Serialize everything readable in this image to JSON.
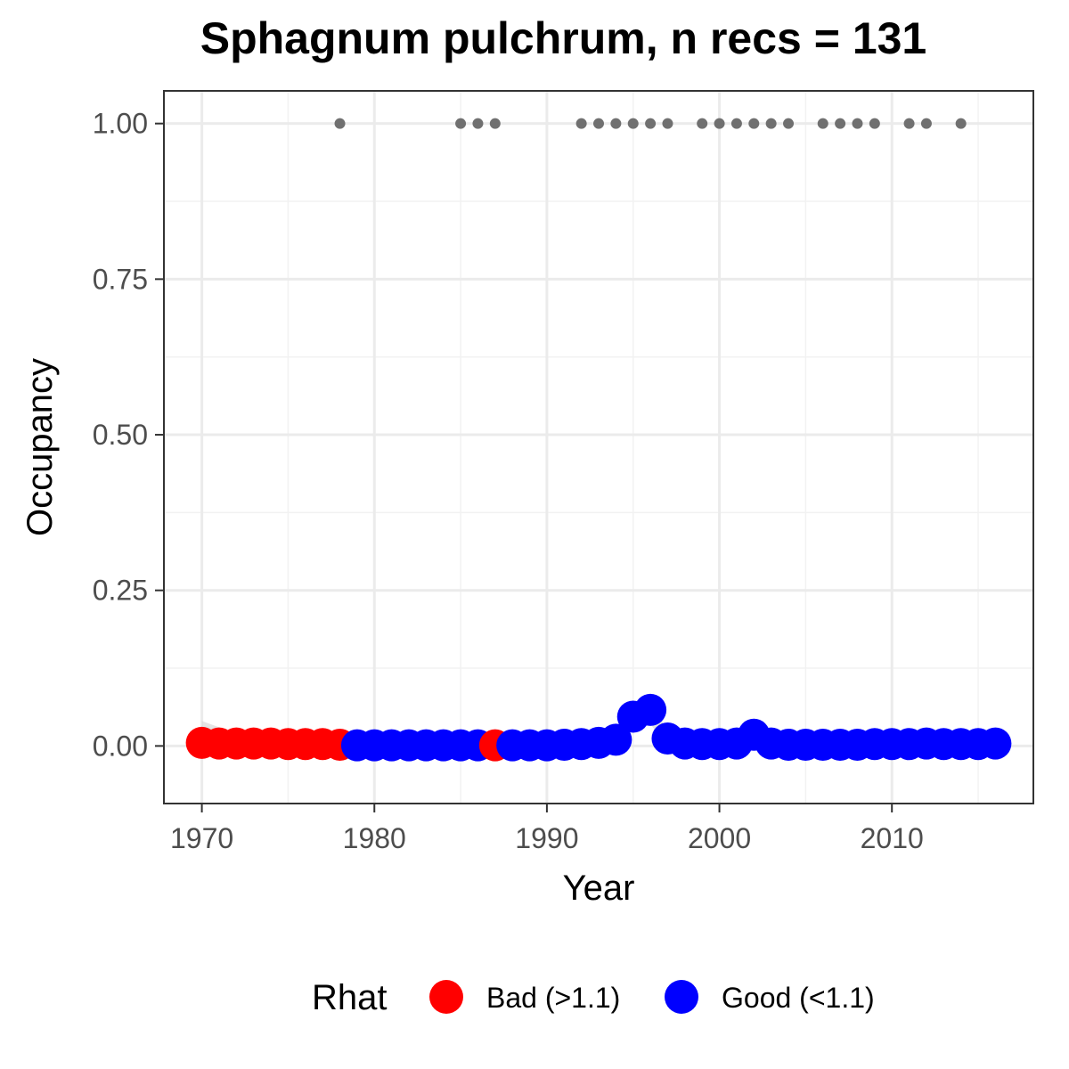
{
  "chart_data": {
    "type": "scatter",
    "title": "Sphagnum pulchrum, n recs = 131",
    "xlabel": "Year",
    "ylabel": "Occupancy",
    "xlim": [
      1967.8,
      2018.2
    ],
    "ylim": [
      -0.0925,
      1.0525
    ],
    "x_ticks": [
      1970,
      1980,
      1990,
      2000,
      2010
    ],
    "x_tick_labels": [
      "1970",
      "1980",
      "1990",
      "2000",
      "2010"
    ],
    "y_ticks": [
      0,
      0.25,
      0.5,
      0.75,
      1
    ],
    "y_tick_labels": [
      "0.00",
      "0.25",
      "0.50",
      "0.75",
      "1.00"
    ],
    "y_minor_ticks": [
      0.125,
      0.375,
      0.625,
      0.875
    ],
    "x_minor_ticks": [
      1975,
      1985,
      1995,
      2005,
      2015
    ],
    "grid": true,
    "legend": {
      "title": "Rhat",
      "position": "bottom",
      "entries": [
        {
          "label": "Bad (>1.1)",
          "color": "#ff0000"
        },
        {
          "label": "Good (<1.1)",
          "color": "#0000ff"
        }
      ]
    },
    "series": [
      {
        "name": "Bad (>1.1)",
        "color": "#ff0000",
        "x": [
          1970,
          1971,
          1972,
          1973,
          1974,
          1975,
          1976,
          1977,
          1978,
          1987
        ],
        "y": [
          0.005,
          0.004,
          0.004,
          0.004,
          0.004,
          0.003,
          0.003,
          0.003,
          0.002,
          0.001
        ]
      },
      {
        "name": "Good (<1.1)",
        "color": "#0000ff",
        "x": [
          1979,
          1980,
          1981,
          1982,
          1983,
          1984,
          1985,
          1986,
          1988,
          1989,
          1990,
          1991,
          1992,
          1993,
          1994,
          1995,
          1996,
          1997,
          1998,
          1999,
          2000,
          2001,
          2002,
          2003,
          2004,
          2005,
          2006,
          2007,
          2008,
          2009,
          2010,
          2011,
          2012,
          2013,
          2014,
          2015,
          2016
        ],
        "y": [
          0.001,
          0.001,
          0.001,
          0.001,
          0.001,
          0.001,
          0.001,
          0.001,
          0.001,
          0.001,
          0.001,
          0.002,
          0.003,
          0.005,
          0.01,
          0.047,
          0.058,
          0.012,
          0.004,
          0.003,
          0.003,
          0.004,
          0.018,
          0.004,
          0.002,
          0.002,
          0.002,
          0.002,
          0.002,
          0.003,
          0.003,
          0.003,
          0.004,
          0.003,
          0.003,
          0.003,
          0.004
        ]
      }
    ],
    "observations": {
      "color": "#707070",
      "x": [
        1978,
        1985,
        1986,
        1987,
        1992,
        1993,
        1994,
        1995,
        1996,
        1997,
        1999,
        2000,
        2001,
        2002,
        2003,
        2004,
        2006,
        2007,
        2008,
        2009,
        2011,
        2012,
        2014
      ],
      "y": 1
    },
    "ribbon": {
      "color": "#d9d9d9",
      "x": [
        1970,
        1971,
        1972,
        1995,
        1996,
        1997
      ],
      "upper": [
        0.04,
        0.03,
        0.015,
        0.06,
        0.085,
        0.02
      ],
      "lower": [
        0,
        0,
        0,
        0.03,
        0.035,
        0
      ]
    }
  }
}
